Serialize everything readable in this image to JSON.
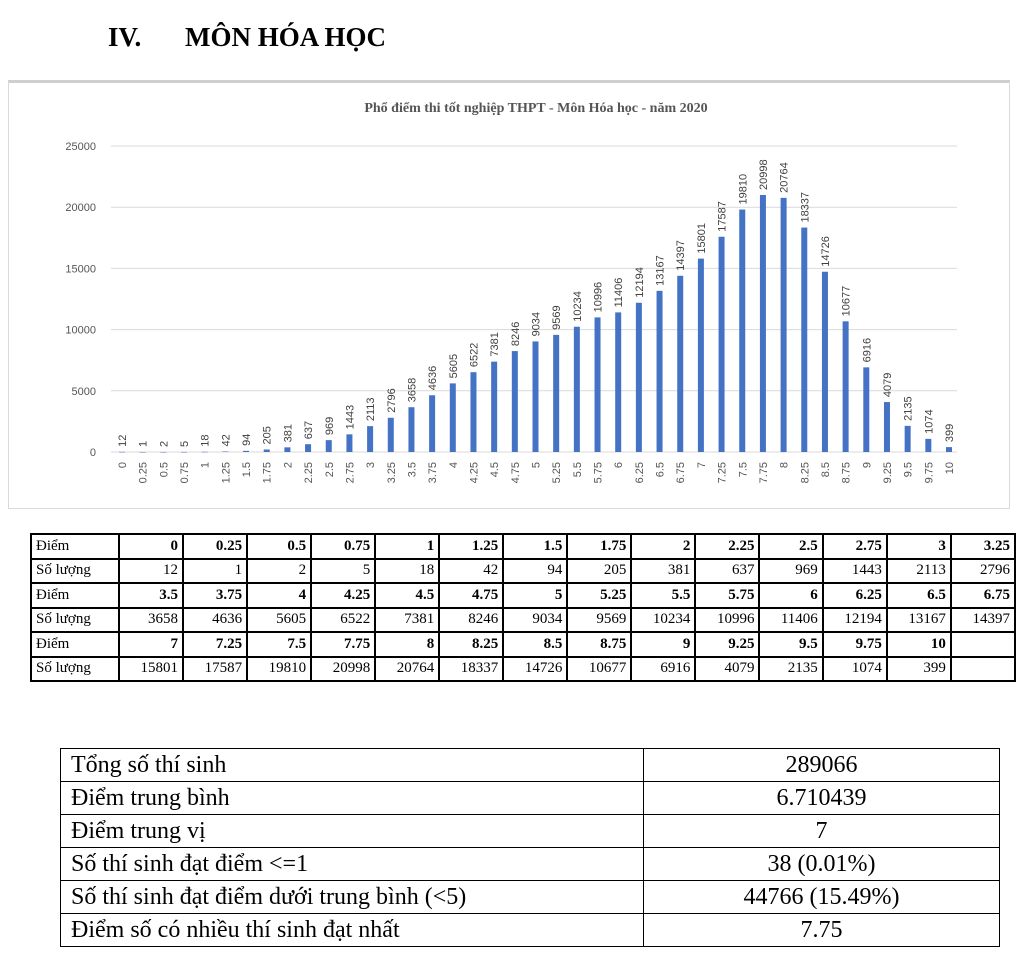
{
  "heading": {
    "number": "IV.",
    "title": "MÔN HÓA HỌC"
  },
  "chart_data": {
    "type": "bar",
    "title": "Phổ điểm thi tốt nghiệp THPT - Môn Hóa học - năm 2020",
    "xlabel": "",
    "ylabel": "",
    "ylim": [
      0,
      25000
    ],
    "yticks": [
      0,
      5000,
      10000,
      15000,
      20000,
      25000
    ],
    "grid": true,
    "color": "#4472c4",
    "categories": [
      "0",
      "0.25",
      "0.5",
      "0.75",
      "1",
      "1.25",
      "1.5",
      "1.75",
      "2",
      "2.25",
      "2.5",
      "2.75",
      "3",
      "3.25",
      "3.5",
      "3.75",
      "4",
      "4.25",
      "4.5",
      "4.75",
      "5",
      "5.25",
      "5.5",
      "5.75",
      "6",
      "6.25",
      "6.5",
      "6.75",
      "7",
      "7.25",
      "7.5",
      "7.75",
      "8",
      "8.25",
      "8.5",
      "8.75",
      "9",
      "9.25",
      "9.5",
      "9.75",
      "10"
    ],
    "values": [
      12,
      1,
      2,
      5,
      18,
      42,
      94,
      205,
      381,
      637,
      969,
      1443,
      2113,
      2796,
      3658,
      4636,
      5605,
      6522,
      7381,
      8246,
      9034,
      9569,
      10234,
      10996,
      11406,
      12194,
      13167,
      14397,
      15801,
      17587,
      19810,
      20998,
      20764,
      18337,
      14726,
      10677,
      6916,
      4079,
      2135,
      1074,
      399
    ]
  },
  "score_table": {
    "score_label": "Điểm",
    "count_label": "Số lượng",
    "groups": [
      {
        "scores": [
          "0",
          "0.25",
          "0.5",
          "0.75",
          "1",
          "1.25",
          "1.5",
          "1.75",
          "2",
          "2.25",
          "2.5",
          "2.75",
          "3",
          "3.25"
        ],
        "counts": [
          "12",
          "1",
          "2",
          "5",
          "18",
          "42",
          "94",
          "205",
          "381",
          "637",
          "969",
          "1443",
          "2113",
          "2796"
        ]
      },
      {
        "scores": [
          "3.5",
          "3.75",
          "4",
          "4.25",
          "4.5",
          "4.75",
          "5",
          "5.25",
          "5.5",
          "5.75",
          "6",
          "6.25",
          "6.5",
          "6.75"
        ],
        "counts": [
          "3658",
          "4636",
          "5605",
          "6522",
          "7381",
          "8246",
          "9034",
          "9569",
          "10234",
          "10996",
          "11406",
          "12194",
          "13167",
          "14397"
        ]
      },
      {
        "scores": [
          "7",
          "7.25",
          "7.5",
          "7.75",
          "8",
          "8.25",
          "8.5",
          "8.75",
          "9",
          "9.25",
          "9.5",
          "9.75",
          "10",
          ""
        ],
        "counts": [
          "15801",
          "17587",
          "19810",
          "20998",
          "20764",
          "18337",
          "14726",
          "10677",
          "6916",
          "4079",
          "2135",
          "1074",
          "399",
          ""
        ]
      }
    ]
  },
  "summary": [
    {
      "label": "Tổng số thí sinh",
      "value": "289066"
    },
    {
      "label": "Điểm trung bình",
      "value": "6.710439"
    },
    {
      "label": "Điểm trung vị",
      "value": "7"
    },
    {
      "label": "Số thí sinh đạt điểm <=1",
      "value": "38 (0.01%)"
    },
    {
      "label": "Số thí sinh đạt điểm dưới trung bình (<5)",
      "value": "44766 (15.49%)"
    },
    {
      "label": "Điểm số có nhiều thí sinh đạt nhất",
      "value": "7.75"
    }
  ]
}
